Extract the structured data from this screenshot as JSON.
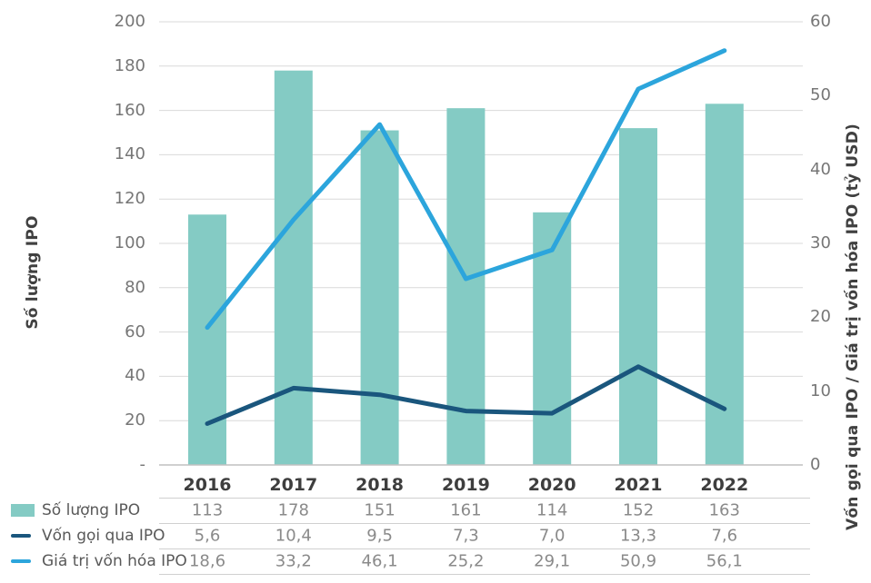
{
  "chart_data": {
    "type": "bar+line combo",
    "categories": [
      "2016",
      "2017",
      "2018",
      "2019",
      "2020",
      "2021",
      "2022"
    ],
    "series": [
      {
        "name": "Số lượng IPO",
        "type": "bar",
        "axis": "left",
        "color": "#84cbc4",
        "values": [
          113,
          178,
          151,
          161,
          114,
          152,
          163
        ],
        "display": [
          "113",
          "178",
          "151",
          "161",
          "114",
          "152",
          "163"
        ]
      },
      {
        "name": "Vốn gọi qua IPO",
        "type": "line",
        "axis": "right",
        "color": "#1a567d",
        "values": [
          5.6,
          10.4,
          9.5,
          7.3,
          7.0,
          13.3,
          7.6
        ],
        "display": [
          "5,6",
          "10,4",
          "9,5",
          "7,3",
          "7,0",
          "13,3",
          "7,6"
        ]
      },
      {
        "name": "Giá trị vốn hóa IPO",
        "type": "line",
        "axis": "right",
        "color": "#2ca5dc",
        "values": [
          18.6,
          33.2,
          46.1,
          25.2,
          29.1,
          50.9,
          56.1
        ],
        "display": [
          "18,6",
          "33,2",
          "46,1",
          "25,2",
          "29,1",
          "50,9",
          "56,1"
        ]
      }
    ],
    "left_axis": {
      "title": "Số lượng IPO",
      "min": 0,
      "max": 200,
      "step": 20,
      "tick_labels": [
        "-",
        "20",
        "40",
        "60",
        "80",
        "100",
        "120",
        "140",
        "160",
        "180",
        "200"
      ]
    },
    "right_axis": {
      "title": "Vốn gọi qua IPO / Giá trị vốn hóa IPO (tỷ USD)",
      "min": 0,
      "max": 60,
      "step": 10,
      "tick_labels": [
        "0",
        "10",
        "20",
        "30",
        "40",
        "50",
        "60"
      ]
    },
    "grid": true,
    "gridline_color": "#d9d9d9",
    "axis_line_color": "#c1c1c1",
    "legend_position": "bottom-table"
  }
}
